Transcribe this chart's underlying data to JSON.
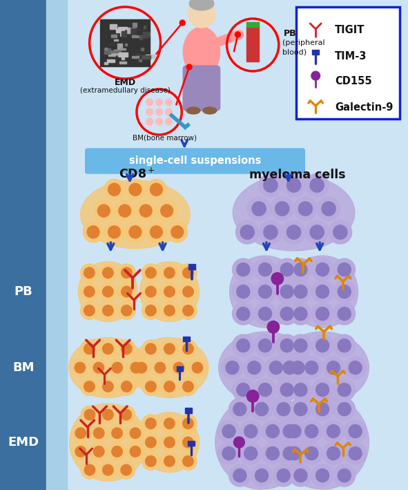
{
  "bg_left_color": "#3a6fa0",
  "bg_main_color": "#cde4f5",
  "legend_border_color": "#2233cc",
  "tigit_color": "#cc2222",
  "tim3_color": "#2233aa",
  "cd155_color": "#882299",
  "galectin_color": "#dd8800",
  "cd8_outer": "#f5c87a",
  "cd8_inner": "#e08030",
  "mye_outer": "#b8aadc",
  "mye_inner": "#8878c0",
  "arrow_color": "#2244bb",
  "box_fill": "#6ab8e8",
  "box_text": "single-cell suspensions",
  "cd8_header": "CD8",
  "mye_header": "myeloma cells",
  "pb_label": "PB",
  "bm_label": "BM",
  "emd_label": "EMD"
}
